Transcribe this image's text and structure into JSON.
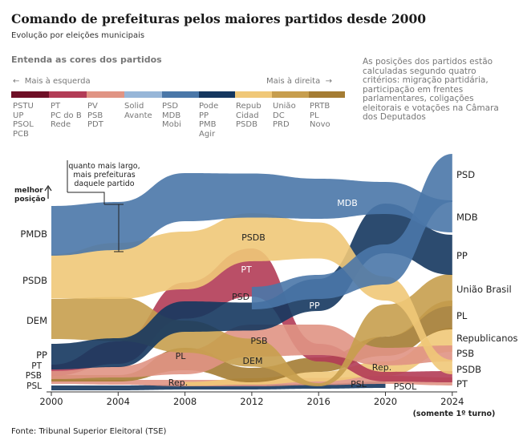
{
  "title": "Comando de prefeituras pelos maiores partidos desde 2000",
  "subtitle": "Evolução por eleições municipais",
  "legend": {
    "title": "Entenda as cores dos partidos",
    "left_label": "Mais à esquerda",
    "right_label": "Mais à direita",
    "colors": [
      "#6e0f26",
      "#b23c56",
      "#e09484",
      "#97b6d8",
      "#4a77a8",
      "#15375f",
      "#f0c878",
      "#c79e4e",
      "#a47c33"
    ],
    "groups": [
      [
        "PSTU",
        "UP",
        "PSOL",
        "PCB"
      ],
      [
        "PT",
        "PC do B",
        "Rede"
      ],
      [
        "PV",
        "PSB",
        "PDT"
      ],
      [
        "Solid",
        "Avante"
      ],
      [
        "PSD",
        "MDB",
        "Mobi"
      ],
      [
        "Pode",
        "PP",
        "PMB",
        "Agir"
      ],
      [
        "Repub",
        "Cidad",
        "PSDB"
      ],
      [
        "União",
        "DC",
        "PRD"
      ],
      [
        "PRTB",
        "PL",
        "Novo"
      ]
    ]
  },
  "note": "As posições dos partidos estão calculadas segundo quatro critérios: migração partidária, participação em frentes parlamentares, coligações eleitorais e votações na Câmara dos Deputados",
  "chart_data": {
    "type": "area",
    "title": "Comando de prefeituras pelos maiores partidos desde 2000",
    "x": [
      2000,
      2004,
      2008,
      2012,
      2016,
      2020,
      2024
    ],
    "x_note": "(somente 1º turno)",
    "y_axis_label": "melhor posição",
    "annotation": "quanto mais largo, mais prefeituras daquele partido",
    "series": [
      {
        "name": "PSD",
        "color": "#4a77a8",
        "values": [
          null,
          null,
          null,
          0.9,
          0.95,
          1.05,
          1.7
        ]
      },
      {
        "name": "MDB",
        "color": "#4a77a8",
        "values": [
          1.6,
          1.6,
          1.5,
          1.35,
          1.25,
          1.35,
          1.15
        ]
      },
      {
        "name": "PP",
        "color": "#15375f",
        "values": [
          0.6,
          0.7,
          0.75,
          0.65,
          0.7,
          1.05,
          0.95
        ]
      },
      {
        "name": "PSDB",
        "color": "#f0c878",
        "values": [
          1.2,
          1.4,
          1.35,
          1.15,
          1.0,
          0.5,
          0.3
        ]
      },
      {
        "name": "PT",
        "color": "#b23c56",
        "values": [
          0.2,
          0.45,
          0.6,
          0.7,
          0.35,
          0.25,
          0.3
        ]
      },
      {
        "name": "DEM",
        "color": "#c79e4e",
        "values": [
          0.95,
          1.0,
          0.7,
          0.55,
          null,
          null,
          null
        ]
      },
      {
        "name": "União Brasil",
        "color": "#c79e4e",
        "values": [
          null,
          null,
          null,
          null,
          null,
          null,
          0.85
        ]
      },
      {
        "name": "PSB",
        "color": "#e09484",
        "values": [
          0.15,
          0.25,
          0.4,
          0.55,
          0.5,
          0.3,
          0.38
        ]
      },
      {
        "name": "PL",
        "color": "#a47c33",
        "values": [
          0.15,
          0.15,
          0.4,
          0.3,
          0.4,
          0.55,
          0.75
        ]
      },
      {
        "name": "Republicanos",
        "color": "#f0c878",
        "values": [
          null,
          null,
          0.1,
          0.15,
          0.2,
          0.35,
          0.55
        ]
      },
      {
        "name": "PDT",
        "color": "#e09484",
        "values": [
          0.1,
          0.1,
          0.15,
          0.2,
          0.2,
          0.25,
          0.3
        ]
      },
      {
        "name": "PSL",
        "color": "#15375f",
        "values": [
          0.05,
          0.05,
          0.05,
          0.05,
          0.05,
          0.1,
          null
        ]
      }
    ],
    "left_labels": [
      "PMDB",
      "PSDB",
      "DEM",
      "PP",
      "PT",
      "PSB",
      "PSL"
    ],
    "right_labels": [
      "PSD",
      "MDB",
      "PP",
      "União Brasil",
      "PL",
      "Republicanos",
      "PSB",
      "PSDB",
      "PT"
    ],
    "inline_labels": [
      "MDB",
      "PSDB",
      "PT",
      "PSD",
      "PP",
      "PSB",
      "DEM",
      "PL",
      "Rep.",
      "Rep.",
      "PSL",
      "PSOL"
    ]
  },
  "footer": "Fonte: Tribunal Superior Eleitoral (TSE)"
}
